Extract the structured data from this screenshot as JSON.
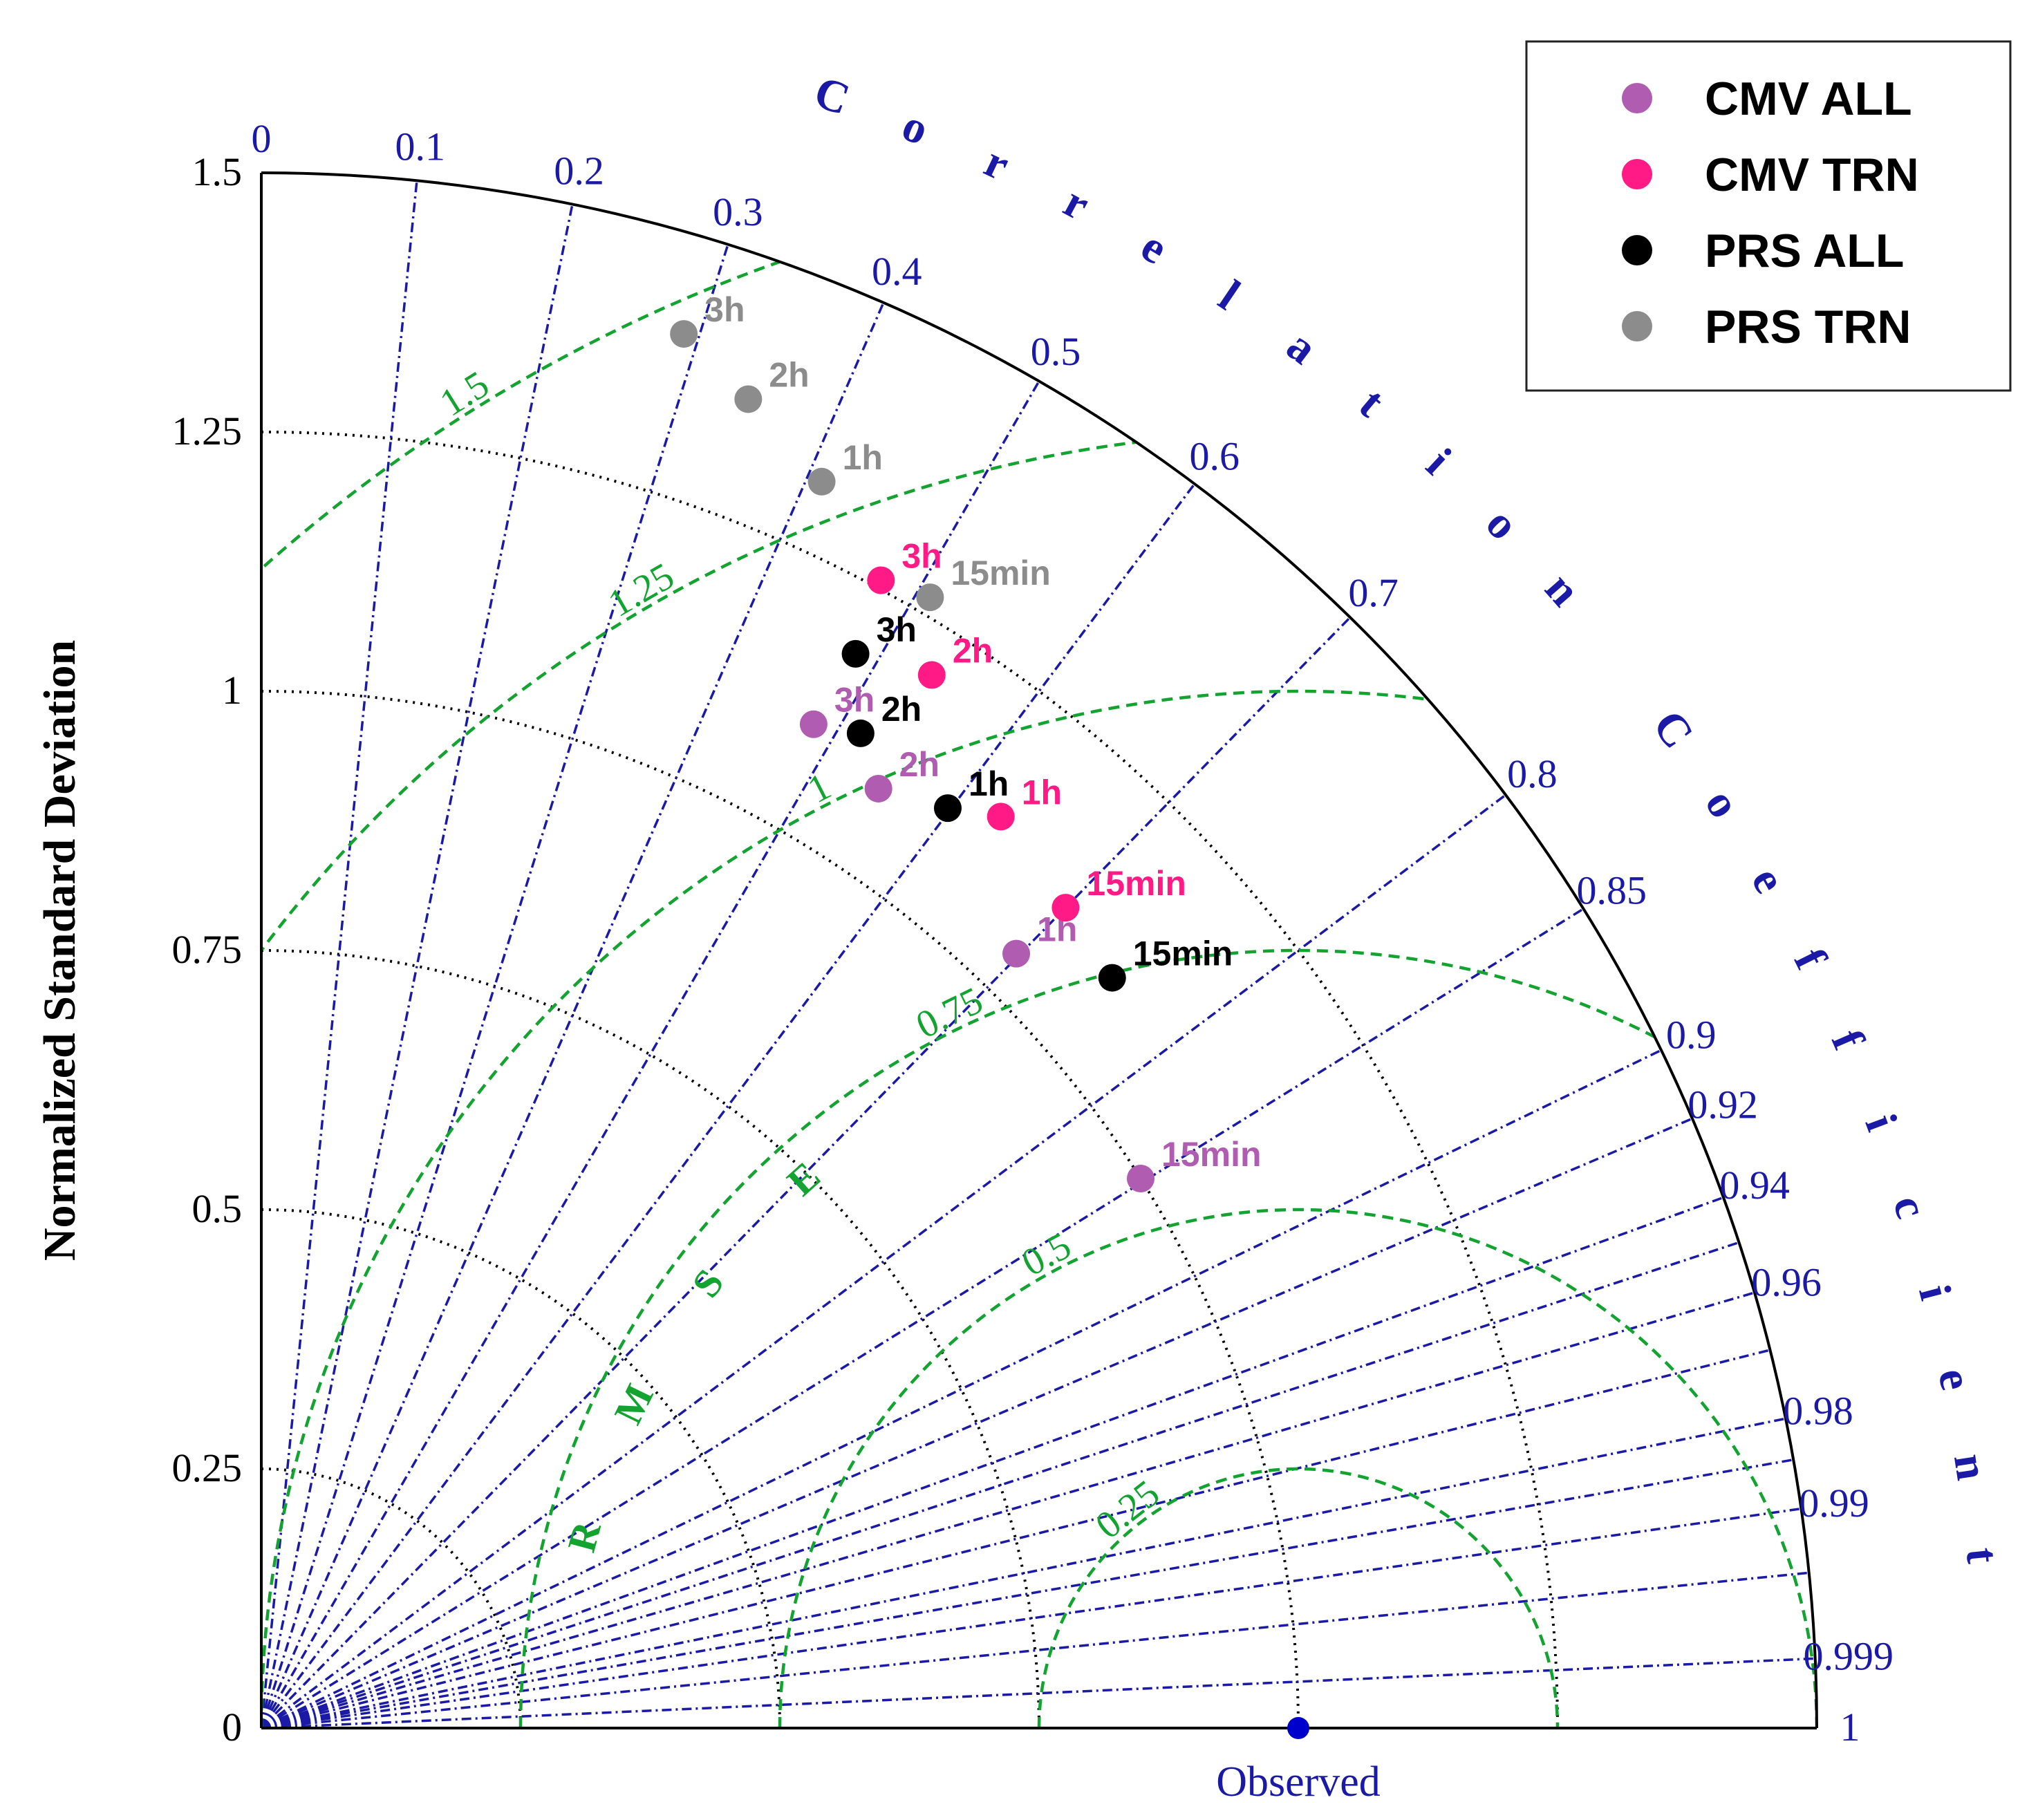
{
  "chart_data": {
    "type": "taylor-diagram",
    "ylabel": "Normalized Standard Deviation",
    "correlation_title": "Correlation Coefficient",
    "rmse_title": "RMSE",
    "observed_label": "Observed",
    "std_max": 1.5,
    "std_ticks": [
      {
        "value": 0,
        "label": "0"
      },
      {
        "value": 0.25,
        "label": "0.25"
      },
      {
        "value": 0.5,
        "label": "0.5"
      },
      {
        "value": 0.75,
        "label": "0.75"
      },
      {
        "value": 1,
        "label": "1"
      },
      {
        "value": 1.25,
        "label": "1.25"
      },
      {
        "value": 1.5,
        "label": "1.5"
      }
    ],
    "corr_ticks": [
      {
        "value": 0,
        "label": "0"
      },
      {
        "value": 0.1,
        "label": "0.1"
      },
      {
        "value": 0.2,
        "label": "0.2"
      },
      {
        "value": 0.3,
        "label": "0.3"
      },
      {
        "value": 0.4,
        "label": "0.4"
      },
      {
        "value": 0.5,
        "label": "0.5"
      },
      {
        "value": 0.6,
        "label": "0.6"
      },
      {
        "value": 0.7,
        "label": "0.7"
      },
      {
        "value": 0.8,
        "label": "0.8"
      },
      {
        "value": 0.85,
        "label": "0.85"
      },
      {
        "value": 0.9,
        "label": "0.9"
      },
      {
        "value": 0.92,
        "label": "0.92"
      },
      {
        "value": 0.94,
        "label": "0.94"
      },
      {
        "value": 0.96,
        "label": "0.96"
      },
      {
        "value": 0.98,
        "label": "0.98"
      },
      {
        "value": 0.99,
        "label": "0.99"
      },
      {
        "value": 0.999,
        "label": "0.999"
      },
      {
        "value": 1,
        "label": "1"
      }
    ],
    "rmse_arcs": [
      {
        "value": 0.25,
        "label": "0.25"
      },
      {
        "value": 0.5,
        "label": "0.5"
      },
      {
        "value": 0.75,
        "label": "0.75"
      },
      {
        "value": 1,
        "label": "1"
      },
      {
        "value": 1.25,
        "label": "1.25"
      },
      {
        "value": 1.5,
        "label": "1.5"
      }
    ],
    "observed": {
      "std": 1,
      "corr": 1,
      "color": "#0000cc"
    },
    "series": [
      {
        "name": "CMV ALL",
        "color": "#b05cb0",
        "points": [
          {
            "label": "15min",
            "std": 1.0,
            "corr": 0.848
          },
          {
            "label": "1h",
            "std": 1.043,
            "corr": 0.698
          },
          {
            "label": "2h",
            "std": 1.084,
            "corr": 0.549
          },
          {
            "label": "3h",
            "std": 1.105,
            "corr": 0.482
          }
        ]
      },
      {
        "name": "CMV TRN",
        "color": "#ff1a85",
        "points": [
          {
            "label": "15min",
            "std": 1.108,
            "corr": 0.7
          },
          {
            "label": "1h",
            "std": 1.132,
            "corr": 0.63
          },
          {
            "label": "2h",
            "std": 1.204,
            "corr": 0.537
          },
          {
            "label": "3h",
            "std": 1.258,
            "corr": 0.475
          }
        ]
      },
      {
        "name": "PRS ALL",
        "color": "#000000",
        "points": [
          {
            "label": "15min",
            "std": 1.094,
            "corr": 0.75
          },
          {
            "label": "1h",
            "std": 1.107,
            "corr": 0.598
          },
          {
            "label": "2h",
            "std": 1.12,
            "corr": 0.516
          },
          {
            "label": "3h",
            "std": 1.184,
            "corr": 0.484
          }
        ]
      },
      {
        "name": "PRS TRN",
        "color": "#8c8c8c",
        "points": [
          {
            "label": "15min",
            "std": 1.267,
            "corr": 0.509
          },
          {
            "label": "1h",
            "std": 1.318,
            "corr": 0.41
          },
          {
            "label": "2h",
            "std": 1.365,
            "corr": 0.344
          },
          {
            "label": "3h",
            "std": 1.405,
            "corr": 0.29
          }
        ]
      }
    ]
  },
  "colors": {
    "axis": "#000000",
    "corr_lines": "#1a1aa6",
    "rmse_arcs": "#13a330",
    "std_arcs": "#000000"
  }
}
